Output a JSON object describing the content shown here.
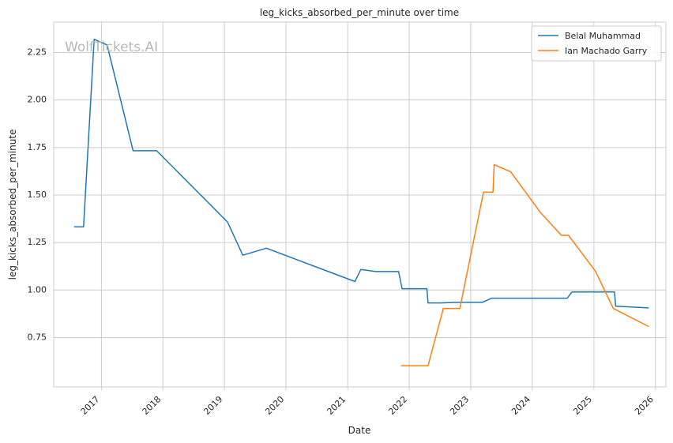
{
  "chart_data": {
    "type": "line",
    "title": "leg_kicks_absorbed_per_minute over time",
    "xlabel": "Date",
    "ylabel": "leg_kicks_absorbed_per_minute",
    "x_ticks": [
      "2017",
      "2018",
      "2019",
      "2020",
      "2021",
      "2022",
      "2023",
      "2024",
      "2025",
      "2026"
    ],
    "y_ticks": [
      "0.75",
      "1.00",
      "1.25",
      "1.50",
      "1.75",
      "2.00",
      "2.25"
    ],
    "xlim": [
      "2016-03-24",
      "2026-03-04"
    ],
    "ylim": [
      0.49,
      2.41
    ],
    "grid": true,
    "legend_position": "top-right",
    "watermark": "WolfTickets.AI",
    "series": [
      {
        "name": "Belal Muhammad",
        "color": "#1f77b4",
        "points": [
          [
            "2016-07-23",
            1.333
          ],
          [
            "2016-09-17",
            1.333
          ],
          [
            "2016-11-19",
            2.32
          ],
          [
            "2017-02-04",
            2.29
          ],
          [
            "2017-07-08",
            1.733
          ],
          [
            "2017-11-25",
            1.733
          ],
          [
            "2019-01-19",
            1.358
          ],
          [
            "2019-04-20",
            1.183
          ],
          [
            "2019-09-07",
            1.22
          ],
          [
            "2021-02-13",
            1.045
          ],
          [
            "2021-03-20",
            1.108
          ],
          [
            "2021-06-19",
            1.097
          ],
          [
            "2021-10-30",
            1.097
          ],
          [
            "2021-11-20",
            1.007
          ],
          [
            "2022-04-16",
            1.007
          ],
          [
            "2022-04-23",
            0.932
          ],
          [
            "2022-07-02",
            0.932
          ],
          [
            "2022-10-22",
            0.935
          ],
          [
            "2023-03-11",
            0.935
          ],
          [
            "2023-05-06",
            0.957
          ],
          [
            "2024-07-27",
            0.957
          ],
          [
            "2024-08-24",
            0.99
          ],
          [
            "2025-05-03",
            0.99
          ],
          [
            "2025-05-10",
            0.915
          ],
          [
            "2025-11-22",
            0.906
          ]
        ]
      },
      {
        "name": "Ian Machado Garry",
        "color": "#ff7f0e",
        "points": [
          [
            "2021-11-13",
            0.602
          ],
          [
            "2022-04-23",
            0.602
          ],
          [
            "2022-07-23",
            0.903
          ],
          [
            "2022-10-29",
            0.903
          ],
          [
            "2023-03-18",
            1.515
          ],
          [
            "2023-05-13",
            1.515
          ],
          [
            "2023-05-20",
            1.66
          ],
          [
            "2023-08-26",
            1.622
          ],
          [
            "2024-02-17",
            1.41
          ],
          [
            "2024-06-22",
            1.288
          ],
          [
            "2024-08-03",
            1.288
          ],
          [
            "2025-01-11",
            1.098
          ],
          [
            "2025-04-26",
            0.903
          ],
          [
            "2025-11-22",
            0.808
          ]
        ]
      }
    ]
  }
}
